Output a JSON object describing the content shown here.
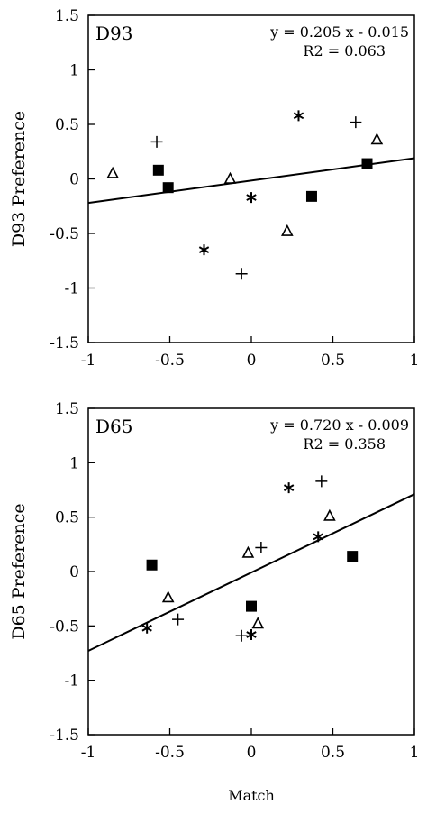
{
  "chart_data": [
    {
      "type": "scatter",
      "panel_label": "D93",
      "ylabel": "D93 Preference",
      "xlim": [
        -1,
        1
      ],
      "ylim": [
        -1.5,
        1.5
      ],
      "x_ticks": [
        "-1",
        "-0.5",
        "0",
        "0.5",
        "1"
      ],
      "y_ticks": [
        "1.5",
        "1",
        "0.5",
        "0",
        "-0.5",
        "-1",
        "-1.5"
      ],
      "equation": "y = 0.205 x - 0.015",
      "r2": "R2 = 0.063",
      "regression": {
        "slope": 0.205,
        "intercept": -0.015
      },
      "series": [
        {
          "marker": "triangle",
          "points": [
            [
              -0.85,
              0.05
            ],
            [
              -0.13,
              0.0
            ],
            [
              0.22,
              -0.48
            ],
            [
              0.77,
              0.36
            ]
          ]
        },
        {
          "marker": "square",
          "points": [
            [
              -0.57,
              0.08
            ],
            [
              -0.51,
              -0.08
            ],
            [
              0.37,
              -0.16
            ],
            [
              0.71,
              0.14
            ]
          ]
        },
        {
          "marker": "star",
          "points": [
            [
              -0.29,
              -0.65
            ],
            [
              0.0,
              -0.17
            ],
            [
              0.29,
              0.58
            ]
          ]
        },
        {
          "marker": "plus",
          "points": [
            [
              -0.58,
              0.34
            ],
            [
              -0.06,
              -0.87
            ],
            [
              0.64,
              0.52
            ]
          ]
        }
      ]
    },
    {
      "type": "scatter",
      "panel_label": "D65",
      "ylabel": "D65 Preference",
      "xlabel": "Match",
      "xlim": [
        -1,
        1
      ],
      "ylim": [
        -1.5,
        1.5
      ],
      "x_ticks": [
        "-1",
        "-0.5",
        "0",
        "0.5",
        "1"
      ],
      "y_ticks": [
        "1.5",
        "1",
        "0.5",
        "0",
        "-0.5",
        "-1",
        "-1.5"
      ],
      "equation": "y = 0.720 x - 0.009",
      "r2": "R2 = 0.358",
      "regression": {
        "slope": 0.72,
        "intercept": -0.009
      },
      "series": [
        {
          "marker": "triangle",
          "points": [
            [
              -0.51,
              -0.24
            ],
            [
              -0.02,
              0.17
            ],
            [
              0.04,
              -0.48
            ],
            [
              0.48,
              0.51
            ]
          ]
        },
        {
          "marker": "square",
          "points": [
            [
              -0.61,
              0.06
            ],
            [
              0.0,
              -0.32
            ],
            [
              0.62,
              0.14
            ]
          ]
        },
        {
          "marker": "star",
          "points": [
            [
              -0.64,
              -0.52
            ],
            [
              0.0,
              -0.58
            ],
            [
              0.23,
              0.77
            ],
            [
              0.41,
              0.32
            ]
          ]
        },
        {
          "marker": "plus",
          "points": [
            [
              -0.45,
              -0.44
            ],
            [
              -0.06,
              -0.59
            ],
            [
              0.06,
              0.22
            ],
            [
              0.43,
              0.83
            ]
          ]
        }
      ]
    }
  ]
}
